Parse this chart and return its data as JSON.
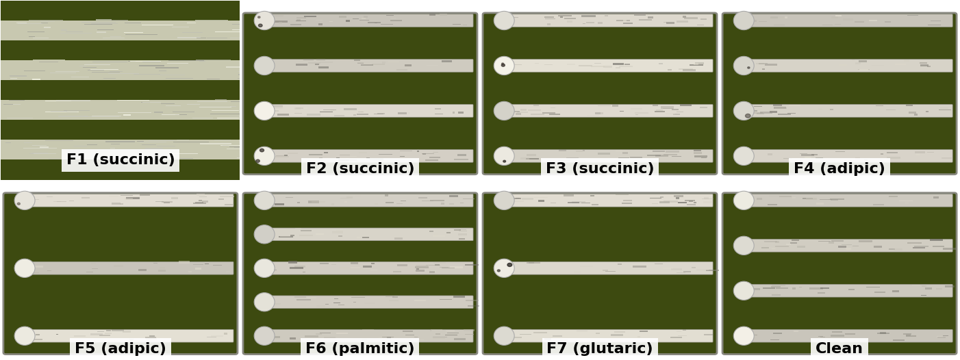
{
  "labels_row0": [
    "F1 (succinic)",
    "F2 (succinic)",
    "F3 (succinic)",
    "F4 (adipic)"
  ],
  "labels_row1": [
    "F5 (adipic)",
    "F6 (palmitic)",
    "F7 (glutaric)",
    "Clean"
  ],
  "ncols": 4,
  "nrows": 2,
  "figsize": [
    14.02,
    5.26
  ],
  "dpi": 100,
  "bg_olive": "#3d4a10",
  "bg_olive2": "#4a5515",
  "stripe_silver": "#d0ccc0",
  "stripe_white": "#e8e6e0",
  "stripe_dark_edge": "#888880",
  "bulge_white": "#f0eee8",
  "border_color": "#cccccc",
  "label_bg": "#ffffff",
  "label_color": "#000000",
  "label_fontsize": 14,
  "outer_bg": "#ffffff",
  "separator_color": "#cccccc",
  "panel_border": "#aaaaaa"
}
